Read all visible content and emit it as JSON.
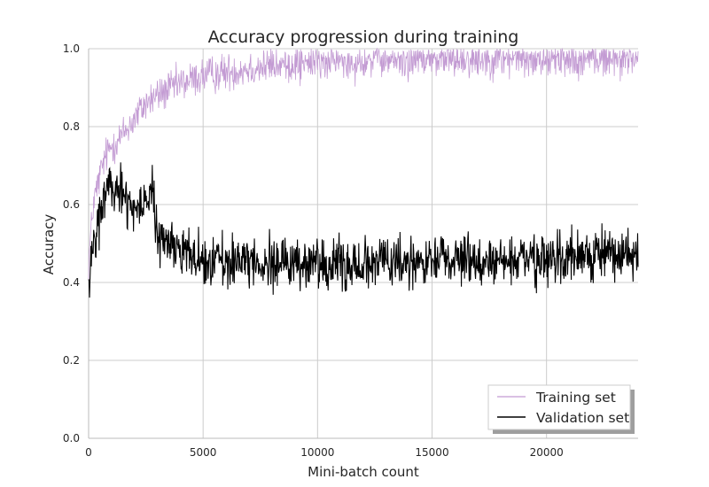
{
  "chart_data": {
    "type": "line",
    "title": "Accuracy progression during training",
    "xlabel": "Mini-batch count",
    "ylabel": "Accuracy",
    "xlim": [
      0,
      24000
    ],
    "ylim": [
      0.0,
      1.0
    ],
    "x_ticks": [
      0,
      5000,
      10000,
      15000,
      20000
    ],
    "x_tick_labels": [
      "0",
      "5000",
      "10000",
      "15000",
      "20000"
    ],
    "y_ticks": [
      0.0,
      0.2,
      0.4,
      0.6,
      0.8,
      1.0
    ],
    "y_tick_labels": [
      "0.0",
      "0.2",
      "0.4",
      "0.6",
      "0.8",
      "1.0"
    ],
    "grid": true,
    "legend_position": "bottom-right",
    "series": [
      {
        "name": "Training set",
        "color": "#c39bd3",
        "x": [
          0,
          200,
          400,
          600,
          800,
          1000,
          1500,
          2000,
          2500,
          3000,
          4000,
          5000,
          6000,
          7000,
          8000,
          9000,
          10000,
          12000,
          14000,
          16000,
          18000,
          20000,
          22000,
          24000
        ],
        "values": [
          0.45,
          0.6,
          0.65,
          0.7,
          0.73,
          0.75,
          0.78,
          0.82,
          0.86,
          0.88,
          0.91,
          0.93,
          0.94,
          0.95,
          0.955,
          0.96,
          0.965,
          0.97,
          0.97,
          0.975,
          0.975,
          0.975,
          0.975,
          0.975
        ],
        "noise": 0.03
      },
      {
        "name": "Validation set",
        "color": "#000000",
        "x": [
          0,
          200,
          400,
          600,
          800,
          1000,
          1500,
          2000,
          2500,
          2800,
          3000,
          3500,
          4000,
          5000,
          6000,
          8000,
          10000,
          12000,
          14000,
          16000,
          18000,
          20000,
          22000,
          24000
        ],
        "values": [
          0.4,
          0.5,
          0.55,
          0.58,
          0.66,
          0.64,
          0.62,
          0.6,
          0.6,
          0.63,
          0.52,
          0.5,
          0.48,
          0.46,
          0.46,
          0.45,
          0.45,
          0.45,
          0.45,
          0.46,
          0.45,
          0.46,
          0.47,
          0.47
        ],
        "noise": 0.04
      }
    ]
  }
}
